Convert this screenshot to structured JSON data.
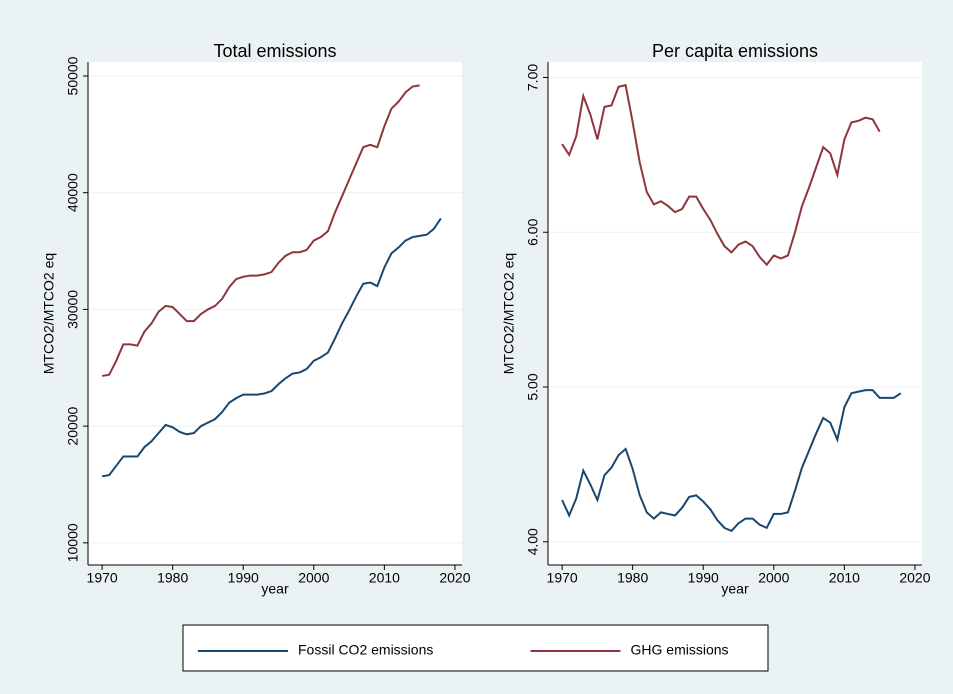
{
  "chart_data": [
    {
      "type": "line",
      "title": "Total emissions",
      "x_label": "year",
      "y_label": "MTCO2/MTCO2 eq",
      "x": [
        1970,
        1971,
        1972,
        1973,
        1974,
        1975,
        1976,
        1977,
        1978,
        1979,
        1980,
        1981,
        1982,
        1983,
        1984,
        1985,
        1986,
        1987,
        1988,
        1989,
        1990,
        1991,
        1992,
        1993,
        1994,
        1995,
        1996,
        1997,
        1998,
        1999,
        2000,
        2001,
        2002,
        2003,
        2004,
        2005,
        2006,
        2007,
        2008,
        2009,
        2010,
        2011,
        2012,
        2013,
        2014,
        2015,
        2016,
        2017,
        2018
      ],
      "series": [
        {
          "name": "Fossil CO2 emissions",
          "color": "#1a476f",
          "values": [
            15700,
            15800,
            16600,
            17400,
            17400,
            17400,
            18200,
            18700,
            19400,
            20100,
            19900,
            19500,
            19300,
            19400,
            20000,
            20300,
            20600,
            21200,
            22000,
            22400,
            22700,
            22700,
            22700,
            22800,
            23000,
            23600,
            24100,
            24500,
            24600,
            24900,
            25600,
            25900,
            26300,
            27500,
            28800,
            29900,
            31100,
            32200,
            32300,
            32000,
            33600,
            34800,
            35300,
            35900,
            36200,
            36300,
            36400,
            36900,
            37800
          ]
        },
        {
          "name": "GHG emissions",
          "color": "#90353b",
          "values": [
            24300,
            24400,
            25600,
            27000,
            27000,
            26900,
            28100,
            28800,
            29800,
            30300,
            30200,
            29600,
            29000,
            29000,
            29600,
            30000,
            30300,
            30900,
            31900,
            32600,
            32800,
            32900,
            32900,
            33000,
            33200,
            34000,
            34600,
            34900,
            34900,
            35100,
            35900,
            36200,
            36700,
            38300,
            39700,
            41100,
            42500,
            43900,
            44100,
            43900,
            45700,
            47200,
            47800,
            48600,
            49100,
            49200,
            null,
            null,
            null
          ]
        }
      ],
      "xlim": [
        1968,
        2021
      ],
      "xticks": [
        1970,
        1980,
        1990,
        2000,
        2010,
        2020
      ],
      "ylim": [
        8100,
        51200
      ],
      "yticks": [
        10000,
        20000,
        30000,
        40000,
        50000
      ],
      "grid": true,
      "legend": "bottom"
    },
    {
      "type": "line",
      "title": "Per capita emissions",
      "x_label": "year",
      "y_label": "MTCO2/MTCO2 eq",
      "x": [
        1970,
        1971,
        1972,
        1973,
        1974,
        1975,
        1976,
        1977,
        1978,
        1979,
        1980,
        1981,
        1982,
        1983,
        1984,
        1985,
        1986,
        1987,
        1988,
        1989,
        1990,
        1991,
        1992,
        1993,
        1994,
        1995,
        1996,
        1997,
        1998,
        1999,
        2000,
        2001,
        2002,
        2003,
        2004,
        2005,
        2006,
        2007,
        2008,
        2009,
        2010,
        2011,
        2012,
        2013,
        2014,
        2015,
        2016,
        2017,
        2018
      ],
      "series": [
        {
          "color": "#1a476f",
          "values": [
            4.27,
            4.17,
            4.28,
            4.46,
            4.37,
            4.27,
            4.43,
            4.48,
            4.56,
            4.6,
            4.47,
            4.3,
            4.19,
            4.15,
            4.19,
            4.18,
            4.17,
            4.22,
            4.29,
            4.3,
            4.26,
            4.21,
            4.14,
            4.09,
            4.07,
            4.12,
            4.15,
            4.15,
            4.11,
            4.09,
            4.18,
            4.18,
            4.19,
            4.33,
            4.48,
            4.59,
            4.7,
            4.8,
            4.77,
            4.66,
            4.87,
            4.96,
            4.97,
            4.98,
            4.98,
            4.93,
            4.93,
            4.93,
            4.96
          ]
        },
        {
          "color": "#90353b",
          "values": [
            6.57,
            6.5,
            6.62,
            6.88,
            6.76,
            6.6,
            6.81,
            6.82,
            6.94,
            6.95,
            6.71,
            6.45,
            6.26,
            6.18,
            6.2,
            6.17,
            6.13,
            6.15,
            6.23,
            6.23,
            6.15,
            6.08,
            5.99,
            5.91,
            5.87,
            5.92,
            5.94,
            5.91,
            5.84,
            5.79,
            5.85,
            5.83,
            5.85,
            6.0,
            6.17,
            6.29,
            6.42,
            6.55,
            6.51,
            6.37,
            6.6,
            6.71,
            6.72,
            6.74,
            6.73,
            6.65,
            null,
            null,
            null
          ]
        }
      ],
      "xlim": [
        1968,
        2021
      ],
      "xticks": [
        1970,
        1980,
        1990,
        2000,
        2010,
        2020
      ],
      "ylim": [
        3.85,
        7.1
      ],
      "yticks": [
        {
          "value": 4,
          "label": "4.00"
        },
        {
          "value": 5,
          "label": "5.00"
        },
        {
          "value": 6,
          "label": "6.00"
        },
        {
          "value": 7,
          "label": "7.00"
        }
      ],
      "grid": true
    }
  ]
}
